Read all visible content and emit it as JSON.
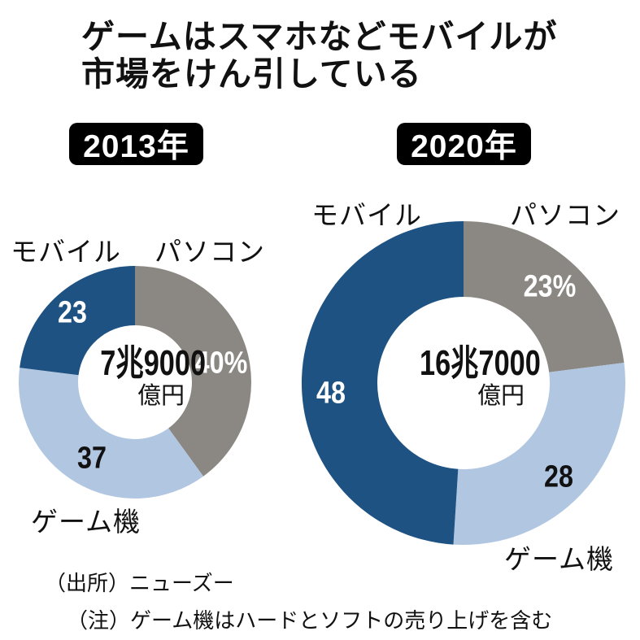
{
  "header": {
    "title_line1": "ゲームはスマホなどモバイルが",
    "title_line2": "市場をけん引している"
  },
  "colors": {
    "mobile_blue": "#1d5282",
    "console_light_blue": "#b1c6e1",
    "pc_gray": "#8b8782",
    "badge_bg": "#000000",
    "badge_text": "#ffffff"
  },
  "chart_data": [
    {
      "id": "2013",
      "type": "pie",
      "donut": true,
      "start_angle": "top",
      "direction": "clockwise",
      "title": "2013年",
      "unit": "%",
      "center_value": "7兆9000",
      "center_unit": "億円",
      "center_label": "7兆9000億円",
      "segments": [
        {
          "key": "pc",
          "name": "パソコン",
          "value": 40,
          "label": "40%",
          "color": "#8b8782"
        },
        {
          "key": "console",
          "name": "ゲーム機",
          "value": 37,
          "label": "37",
          "color": "#b1c6e1"
        },
        {
          "key": "mobile",
          "name": "モバイル",
          "value": 23,
          "label": "23",
          "color": "#1d5282"
        }
      ]
    },
    {
      "id": "2020",
      "type": "pie",
      "donut": true,
      "start_angle": "top",
      "direction": "clockwise",
      "title": "2020年",
      "unit": "%",
      "center_value": "16兆7000",
      "center_unit": "億円",
      "center_label": "16兆7000億円",
      "segments": [
        {
          "key": "pc",
          "name": "パソコン",
          "value": 23,
          "label": "23%",
          "color": "#8b8782"
        },
        {
          "key": "console",
          "name": "ゲーム機",
          "value": 28,
          "label": "28",
          "color": "#b1c6e1"
        },
        {
          "key": "mobile",
          "name": "モバイル",
          "value": 48,
          "label": "48",
          "color": "#1d5282"
        }
      ]
    }
  ],
  "footer": {
    "source": "（出所）ニューズー",
    "note": "（注）ゲーム機はハードとソフトの売り上げを含む"
  }
}
